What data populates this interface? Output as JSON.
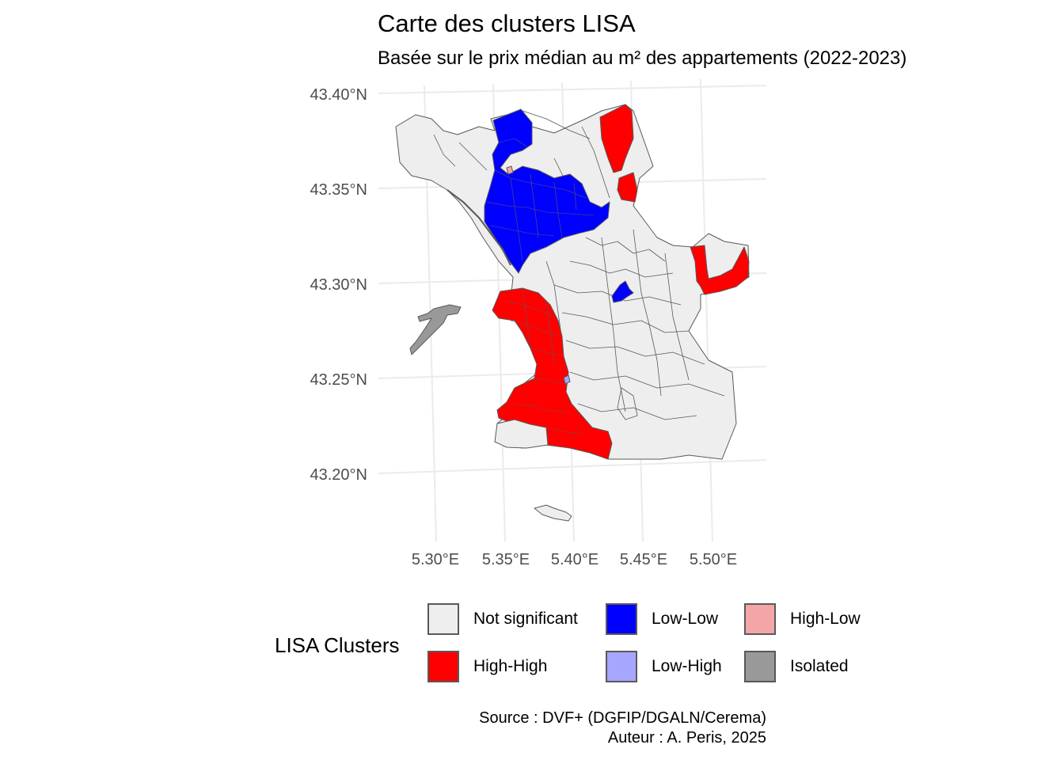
{
  "title": "Carte des clusters LISA",
  "subtitle": "Basée sur le prix médian au m² des appartements (2022-2023)",
  "axes": {
    "lat_labels": [
      "43.40°N",
      "43.35°N",
      "43.30°N",
      "43.25°N",
      "43.20°N"
    ],
    "lon_labels": [
      "5.30°E",
      "5.35°E",
      "5.40°E",
      "5.45°E",
      "5.50°E"
    ]
  },
  "legend": {
    "title": "LISA Clusters",
    "items": [
      {
        "label": "Not significant",
        "color": "#eeeeee"
      },
      {
        "label": "High-High",
        "color": "#ff0000"
      },
      {
        "label": "Low-Low",
        "color": "#0000ff"
      },
      {
        "label": "Low-High",
        "color": "#a6a6ff"
      },
      {
        "label": "High-Low",
        "color": "#f4a6a6"
      },
      {
        "label": "Isolated",
        "color": "#999999"
      }
    ]
  },
  "caption": {
    "source": "Source : DVF+ (DGFIP/DGALN/Cerema)",
    "author": "Auteur : A. Peris, 2025"
  },
  "colors": {
    "not_significant": "#eeeeee",
    "high_high": "#ff0000",
    "low_low": "#0000ff",
    "low_high": "#a6a6ff",
    "isolated": "#999999",
    "border": "#595959",
    "grid": "#ebebeb"
  }
}
